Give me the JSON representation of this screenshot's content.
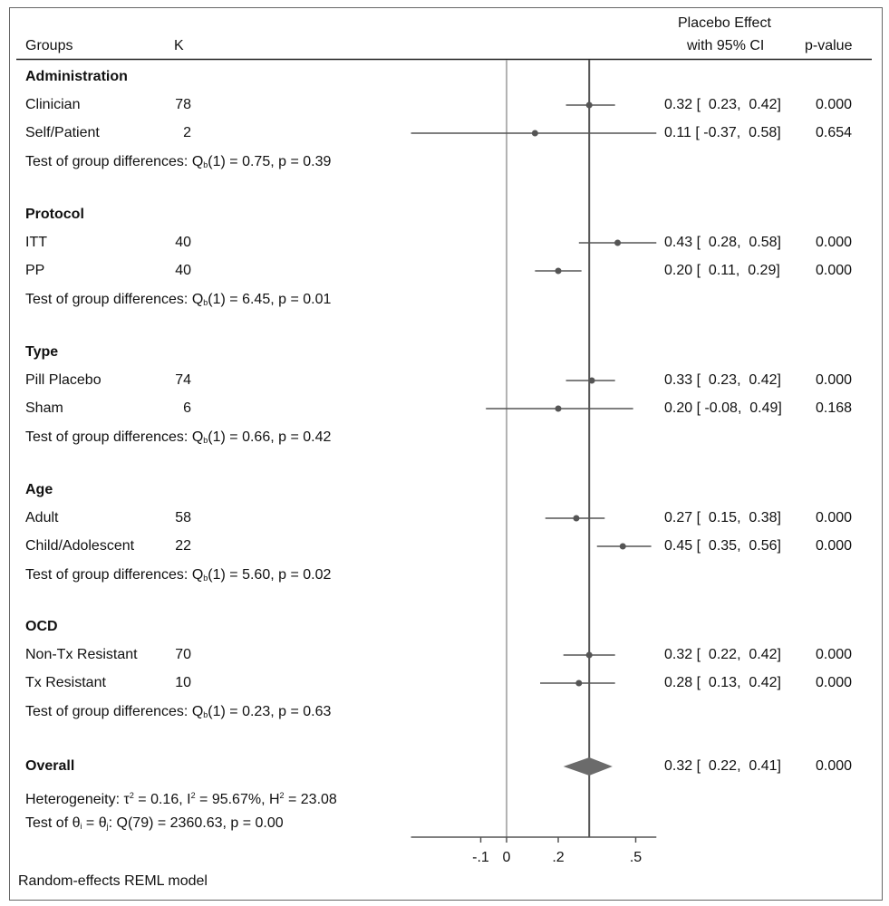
{
  "header": {
    "groups": "Groups",
    "k": "K",
    "effect_line1": "Placebo Effect",
    "effect_line2": "with 95% CI",
    "pvalue": "p-value"
  },
  "colors": {
    "zero_line": "#9a9a9a",
    "overall_line": "#555555",
    "marker": "#555555",
    "diamond": "#6b6b6b"
  },
  "chart_data": {
    "type": "forest",
    "xlim": [
      -0.37,
      0.58
    ],
    "x_ticks": [
      -0.1,
      0,
      0.2,
      0.5
    ],
    "x_tick_labels": [
      "-.1",
      "0",
      ".2",
      ".5"
    ],
    "reference_line": 0,
    "overall_line": 0.32,
    "groups": [
      {
        "name": "Administration",
        "test": {
          "prefix": "Test of group differences: Q",
          "sub": "b",
          "rest": "(1) = 0.75, p = 0.39"
        },
        "rows": [
          {
            "label": "Clinician",
            "k": "78",
            "est": 0.32,
            "lo": 0.23,
            "hi": 0.42,
            "ci_text": "0.32 [  0.23,  0.42]",
            "p": "0.000"
          },
          {
            "label": "Self/Patient",
            "k": "2",
            "est": 0.11,
            "lo": -0.37,
            "hi": 0.58,
            "ci_text": "0.11 [ -0.37,  0.58]",
            "p": "0.654"
          }
        ]
      },
      {
        "name": "Protocol",
        "test": {
          "prefix": "Test of group differences: Q",
          "sub": "b",
          "rest": "(1) = 6.45, p = 0.01"
        },
        "rows": [
          {
            "label": "ITT",
            "k": "40",
            "est": 0.43,
            "lo": 0.28,
            "hi": 0.58,
            "ci_text": "0.43 [  0.28,  0.58]",
            "p": "0.000"
          },
          {
            "label": "PP",
            "k": "40",
            "est": 0.2,
            "lo": 0.11,
            "hi": 0.29,
            "ci_text": "0.20 [  0.11,  0.29]",
            "p": "0.000"
          }
        ]
      },
      {
        "name": "Type",
        "test": {
          "prefix": "Test of group differences: Q",
          "sub": "b",
          "rest": "(1) = 0.66, p = 0.42"
        },
        "rows": [
          {
            "label": "Pill Placebo",
            "k": "74",
            "est": 0.33,
            "lo": 0.23,
            "hi": 0.42,
            "ci_text": "0.33 [  0.23,  0.42]",
            "p": "0.000"
          },
          {
            "label": "Sham",
            "k": "6",
            "est": 0.2,
            "lo": -0.08,
            "hi": 0.49,
            "ci_text": "0.20 [ -0.08,  0.49]",
            "p": "0.168"
          }
        ]
      },
      {
        "name": "Age",
        "test": {
          "prefix": "Test of group differences: Q",
          "sub": "b",
          "rest": "(1) = 5.60, p = 0.02"
        },
        "rows": [
          {
            "label": "Adult",
            "k": "58",
            "est": 0.27,
            "lo": 0.15,
            "hi": 0.38,
            "ci_text": "0.27 [  0.15,  0.38]",
            "p": "0.000"
          },
          {
            "label": "Child/Adolescent",
            "k": "22",
            "est": 0.45,
            "lo": 0.35,
            "hi": 0.56,
            "ci_text": "0.45 [  0.35,  0.56]",
            "p": "0.000"
          }
        ]
      },
      {
        "name": "OCD",
        "test": {
          "prefix": "Test of group differences: Q",
          "sub": "b",
          "rest": "(1) = 0.23, p = 0.63"
        },
        "rows": [
          {
            "label": "Non-Tx Resistant",
            "k": "70",
            "est": 0.32,
            "lo": 0.22,
            "hi": 0.42,
            "ci_text": "0.32 [  0.22,  0.42]",
            "p": "0.000"
          },
          {
            "label": "Tx Resistant",
            "k": "10",
            "est": 0.28,
            "lo": 0.13,
            "hi": 0.42,
            "ci_text": "0.28 [  0.13,  0.42]",
            "p": "0.000"
          }
        ]
      }
    ],
    "overall": {
      "label": "Overall",
      "est": 0.32,
      "lo": 0.22,
      "hi": 0.41,
      "ci_text": "0.32 [  0.22,  0.41]",
      "p": "0.000",
      "heterogeneity": {
        "a": "Heterogeneity: τ",
        "a_sup": "2",
        "b": " = 0.16, I",
        "b_sup": "2",
        "c": " = 95.67%, H",
        "c_sup": "2",
        "d": " = 23.08"
      },
      "theta_test": {
        "a": "Test of θ",
        "a_sub": "i",
        "b": " = θ",
        "b_sub": "j",
        "c": ": Q(79) = 2360.63, p = 0.00"
      }
    }
  },
  "footer": "Random-effects REML model"
}
